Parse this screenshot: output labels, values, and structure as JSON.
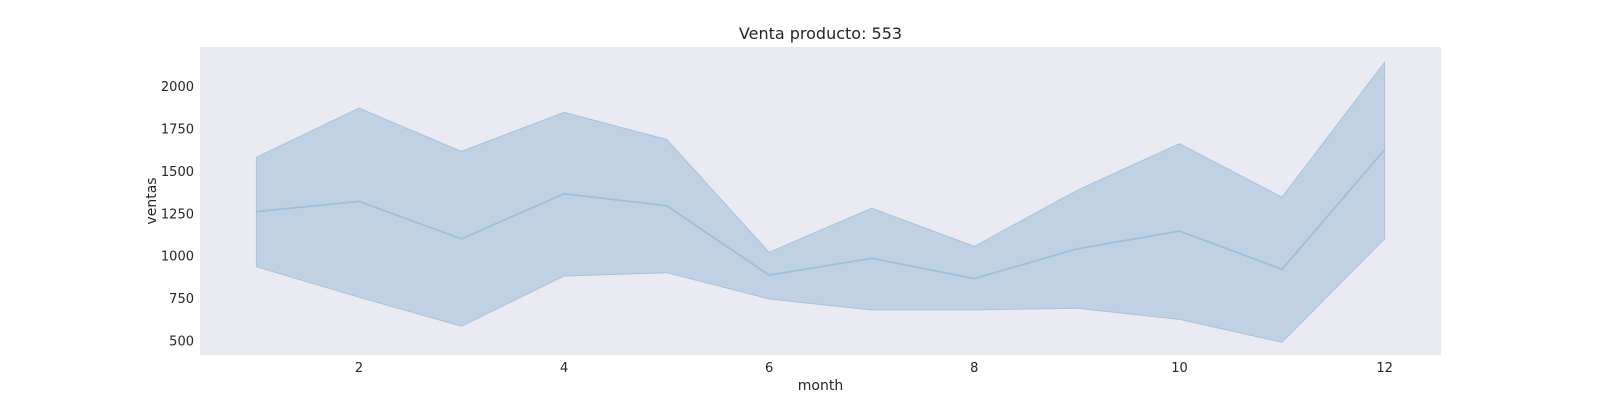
{
  "chart_data": {
    "type": "line",
    "title": "Venta producto: 553",
    "xlabel": "month",
    "ylabel": "ventas",
    "x": [
      1,
      2,
      3,
      4,
      5,
      6,
      7,
      8,
      9,
      10,
      11,
      12
    ],
    "series": [
      {
        "values": [
          1260,
          1320,
          1100,
          1365,
          1295,
          885,
          985,
          865,
          1040,
          1145,
          920,
          1625
        ],
        "ci_lower": [
          935,
          755,
          585,
          880,
          900,
          745,
          680,
          680,
          690,
          625,
          490,
          1100
        ],
        "ci_upper": [
          1580,
          1870,
          1615,
          1845,
          1685,
          1020,
          1280,
          1055,
          1385,
          1660,
          1345,
          2140
        ]
      }
    ],
    "xlim": [
      0.45,
      12.55
    ],
    "ylim": [
      415,
      2230
    ],
    "xticks": [
      2,
      4,
      6,
      8,
      10,
      12
    ],
    "yticks": [
      500,
      750,
      1000,
      1250,
      1500,
      1750,
      2000
    ],
    "grid": false,
    "colors": {
      "line": "#9ebfdb",
      "band": "#9fbcd9",
      "plot_bg": "#eaeaf2"
    }
  }
}
